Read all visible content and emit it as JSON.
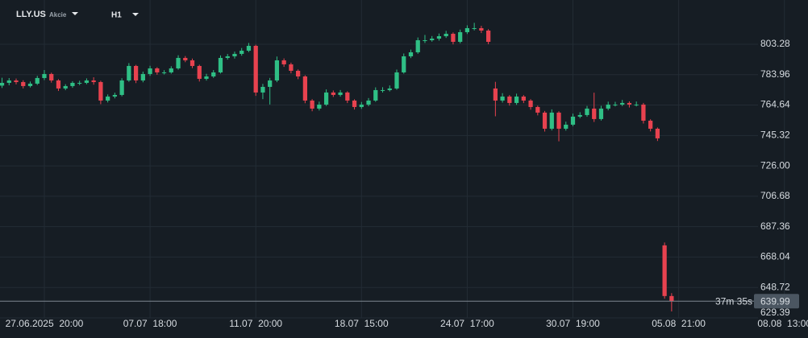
{
  "chart_data": {
    "type": "candlestick",
    "title": "LLY.US",
    "subtitle": "Akcie",
    "timeframe": "H1",
    "up_color": "#2fbf85",
    "down_color": "#e8424f",
    "grid": true,
    "ylim": [
      629.39,
      831.41
    ],
    "yticks": [
      629.39,
      648.72,
      668.04,
      687.36,
      706.68,
      {
        "value": 726,
        "label": "726.00"
      },
      745.32,
      764.64,
      783.96,
      803.28
    ],
    "xlim": [
      -0.29,
      114.35
    ],
    "xticks": [
      {
        "value": 6,
        "label": "27.06.2025  20:00"
      },
      {
        "value": 21,
        "label": "07.07  18:00"
      },
      {
        "value": 36,
        "label": "11.07  20:00"
      },
      {
        "value": 51,
        "label": "18.07  15:00"
      },
      {
        "value": 66,
        "label": "24.07  17:00"
      },
      {
        "value": 81,
        "label": "30.07  19:00"
      },
      {
        "value": 96,
        "label": "05.08  21:00"
      },
      {
        "value": 111,
        "label": "08.08  13:00"
      }
    ],
    "current_price": 639.99,
    "countdown": "37m 35s",
    "categories": [
      null,
      null,
      null,
      null,
      null,
      null,
      null,
      null,
      null,
      null,
      null,
      null,
      null,
      null,
      null,
      null,
      null,
      null,
      null,
      null,
      null,
      null,
      null,
      null,
      null,
      null,
      null,
      null,
      null,
      null,
      null,
      null,
      null,
      null,
      null,
      null,
      null,
      null,
      null,
      null,
      null,
      null,
      null,
      null,
      null,
      null,
      null,
      null,
      null,
      null,
      null,
      null,
      null,
      null,
      null,
      null,
      null,
      null,
      null,
      null,
      null,
      null,
      null,
      null,
      null,
      null,
      null,
      null,
      null,
      null,
      null,
      null,
      null,
      null,
      null,
      null,
      null,
      null,
      null,
      null,
      null,
      null,
      null,
      null,
      null,
      null,
      null,
      null,
      null,
      null,
      null,
      null,
      null,
      null,
      null,
      null
    ],
    "open": [
      777.0,
      778.75,
      780.29,
      779.26,
      776.71,
      778.24,
      781.82,
      784.38,
      780.29,
      775.17,
      776.71,
      778.75,
      778.75,
      780.29,
      779.26,
      767.5,
      770.06,
      771.08,
      780.29,
      789.49,
      780.29,
      784.38,
      787.95,
      785.4,
      785.4,
      787.95,
      794.6,
      793.07,
      789.49,
      781.31,
      782.84,
      785.4,
      794.6,
      795.62,
      797.16,
      799.2,
      802.27,
      772.62,
      776.2,
      780.29,
      793.07,
      790.51,
      786.42,
      782.84,
      767.5,
      762.39,
      764.95,
      772.62,
      771.08,
      772.62,
      767.5,
      763.41,
      764.95,
      767.5,
      774.15,
      774.15,
      775.17,
      785.4,
      795.62,
      798.18,
      805.85,
      805.85,
      806.87,
      808.4,
      809.94,
      804.83,
      810.96,
      813.52,
      813.52,
      811.98,
      775.17,
      767.5,
      770.06,
      765.97,
      770.06,
      767.5,
      763.41,
      759.84,
      749.61,
      759.84,
      749.61,
      752.17,
      757.28,
      758.3,
      762.39,
      755.75,
      762.39,
      764.95,
      764.95,
      765.97,
      764.95,
      764.95,
      754.72,
      749.61,
      675.48,
      643.27
    ],
    "high": [
      782.0,
      781.8,
      781.5,
      780.4,
      779.6,
      783.2,
      786.9,
      785.2,
      781.1,
      777.9,
      779.8,
      780.1,
      781.6,
      782.3,
      780.1,
      771.4,
      772.5,
      781.7,
      791.3,
      790.2,
      785.9,
      789.6,
      788.7,
      786.8,
      789.3,
      796.3,
      795.8,
      794.2,
      790.3,
      784.5,
      786.9,
      796.2,
      797.1,
      798.6,
      800.9,
      804.1,
      803.0,
      778.1,
      781.9,
      795.5,
      794.3,
      791.6,
      787.3,
      783.6,
      768.4,
      766.8,
      774.6,
      773.9,
      774.2,
      773.4,
      768.3,
      766.6,
      769.1,
      775.9,
      776.0,
      777.1,
      787.2,
      797.4,
      799.9,
      807.6,
      809.2,
      808.5,
      810.1,
      811.8,
      810.8,
      812.6,
      815.3,
      816.9,
      815.0,
      812.9,
      779.4,
      772.2,
      771.0,
      771.9,
      771.0,
      768.4,
      764.3,
      760.9,
      761.9,
      760.7,
      754.1,
      759.2,
      760.1,
      764.1,
      772.5,
      764.2,
      766.8,
      766.7,
      767.9,
      767.0,
      766.9,
      766.0,
      755.6,
      750.4,
      677.3,
      645.1
    ],
    "low": [
      775.5,
      777.2,
      777.8,
      775.2,
      775.8,
      777.4,
      780.5,
      778.9,
      773.6,
      774.1,
      775.6,
      777.3,
      777.9,
      777.6,
      765.2,
      766.3,
      768.9,
      770.2,
      779.4,
      778.6,
      779.1,
      783.2,
      783.9,
      784.1,
      784.6,
      787.1,
      791.9,
      788.1,
      779.6,
      780.2,
      781.9,
      784.7,
      793.5,
      794.2,
      796.0,
      798.3,
      770.5,
      768.4,
      765.0,
      779.2,
      788.9,
      784.8,
      781.1,
      765.8,
      760.7,
      761.2,
      764.1,
      769.8,
      770.0,
      765.9,
      761.8,
      762.2,
      763.9,
      766.7,
      772.6,
      773.3,
      774.4,
      784.6,
      794.5,
      797.2,
      804.1,
      804.9,
      805.6,
      807.3,
      803.2,
      803.9,
      809.8,
      812.1,
      810.4,
      803.3,
      757.5,
      766.2,
      764.3,
      764.8,
      765.9,
      761.7,
      758.1,
      747.8,
      748.5,
      741.6,
      748.4,
      751.2,
      756.3,
      757.2,
      753.9,
      754.8,
      761.3,
      763.8,
      764.0,
      763.1,
      763.8,
      752.9,
      747.9,
      741.8,
      641.6,
      633.5
    ],
    "close": [
      778.75,
      780.29,
      779.26,
      776.71,
      778.24,
      781.82,
      784.38,
      780.29,
      775.17,
      776.71,
      778.75,
      778.75,
      780.29,
      779.26,
      767.5,
      770.06,
      771.08,
      780.29,
      789.49,
      780.29,
      784.38,
      787.95,
      785.4,
      785.4,
      787.95,
      794.6,
      793.07,
      789.49,
      781.31,
      782.84,
      785.4,
      794.6,
      795.62,
      797.16,
      799.2,
      802.27,
      772.62,
      776.2,
      780.29,
      793.07,
      790.51,
      786.42,
      782.84,
      767.5,
      762.39,
      764.95,
      772.62,
      771.08,
      772.62,
      767.5,
      763.41,
      764.95,
      767.5,
      774.15,
      774.15,
      775.17,
      785.4,
      795.62,
      798.18,
      805.85,
      805.85,
      806.87,
      808.4,
      809.94,
      804.83,
      810.96,
      813.52,
      813.52,
      811.98,
      804.83,
      767.5,
      770.06,
      765.97,
      770.06,
      767.5,
      763.41,
      759.84,
      749.61,
      759.84,
      749.61,
      752.17,
      757.28,
      758.3,
      762.39,
      755.75,
      762.39,
      764.95,
      764.95,
      765.97,
      764.95,
      764.95,
      754.72,
      749.61,
      743.48,
      643.27,
      639.99
    ]
  }
}
